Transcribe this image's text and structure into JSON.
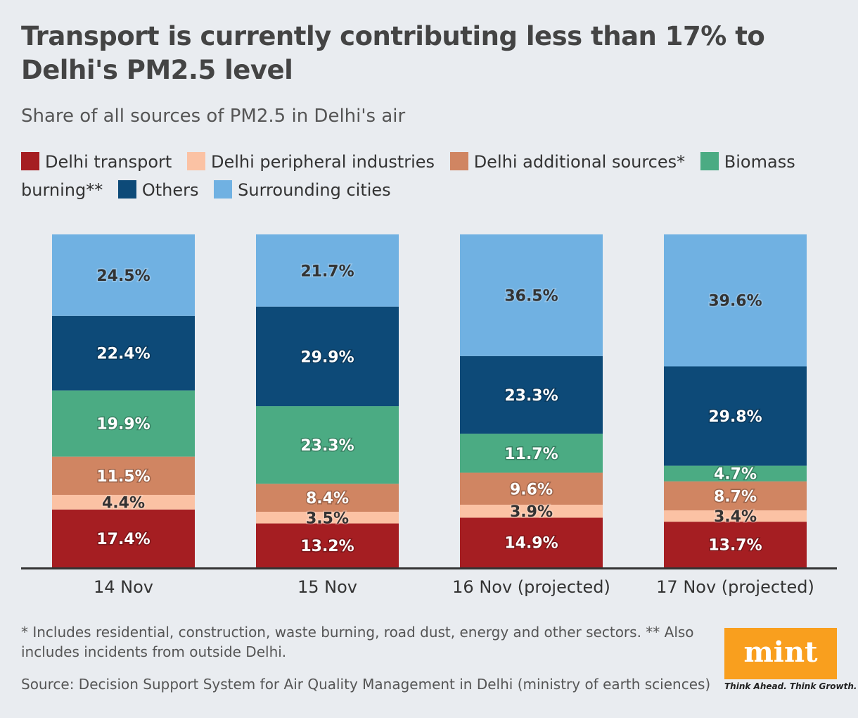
{
  "title": "Transport is currently contributing less than 17% to Delhi's PM2.5 level",
  "subtitle": "Share of all sources of PM2.5 in Delhi's air",
  "note": "* Includes residential, construction, waste burning, road dust, energy and other sectors. ** Also includes incidents from outside Delhi.",
  "source": "Source: Decision Support System for Air Quality Management in Delhi (ministry of earth sciences)",
  "logo": {
    "text": "mint",
    "tagline": "Think Ahead. Think Growth.",
    "color": "#f99f1e"
  },
  "chart_data": {
    "type": "bar",
    "stacked": true,
    "categories": [
      "14 Nov",
      "15 Nov",
      "16 Nov (projected)",
      "17 Nov (projected)"
    ],
    "series": [
      {
        "name": "Delhi transport",
        "color": "#a51e22",
        "values": [
          17.4,
          13.2,
          14.9,
          13.7
        ],
        "label_color": "#ffffff"
      },
      {
        "name": "Delhi peripheral industries",
        "color": "#fbc2a4",
        "values": [
          4.4,
          3.5,
          3.9,
          3.4
        ],
        "label_color": "#333333"
      },
      {
        "name": "Delhi additional sources*",
        "color": "#d08562",
        "values": [
          11.5,
          8.4,
          9.6,
          8.7
        ],
        "label_color": "#ffffff"
      },
      {
        "name": "Biomass burning**",
        "color": "#4bab83",
        "values": [
          19.9,
          23.3,
          11.7,
          4.7
        ],
        "label_color": "#ffffff"
      },
      {
        "name": "Others",
        "color": "#0d4a78",
        "values": [
          22.4,
          29.9,
          23.3,
          29.8
        ],
        "label_color": "#ffffff"
      },
      {
        "name": "Surrounding cities",
        "color": "#70b1e2",
        "values": [
          24.5,
          21.7,
          36.5,
          39.6
        ],
        "label_color": "#333333"
      }
    ],
    "value_suffix": "%",
    "ylim": [
      0,
      100
    ],
    "grid": false,
    "legend": "top"
  }
}
